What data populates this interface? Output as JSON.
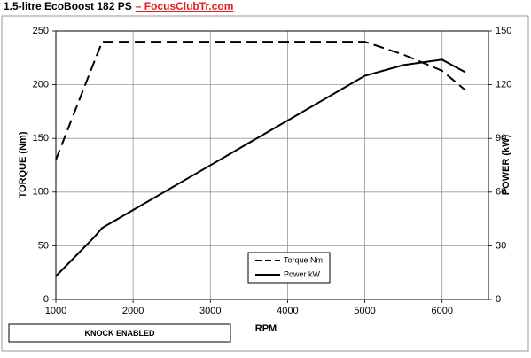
{
  "chart_data": {
    "type": "line",
    "title": "1.5-litre EcoBoost 182 PS",
    "subtitle": "– FocusClubTr.com",
    "x_label": "RPM",
    "y_label": "TORQUE (Nm)",
    "y2_label": "POWER (kW)",
    "annotation": "KNOCK ENABLED",
    "x": [
      1000,
      1500,
      1600,
      5000,
      5500,
      6000,
      6300
    ],
    "series": [
      {
        "name": "Torque Nm",
        "color": "#000000",
        "dash": true,
        "values": [
          130,
          222,
          240,
          240,
          228,
          213,
          195
        ]
      },
      {
        "name": "Power kW",
        "color": "#000000",
        "dash": false,
        "axis": "y2",
        "values": [
          13,
          35,
          40,
          125,
          131,
          134,
          127
        ]
      }
    ],
    "xlim": [
      1000,
      6600
    ],
    "xticks": [
      1000,
      2000,
      3000,
      4000,
      5000,
      6000
    ],
    "ylim": [
      0,
      250
    ],
    "yticks": [
      0,
      50,
      100,
      150,
      200,
      250
    ],
    "y2lim": [
      0,
      150
    ],
    "y2ticks": [
      0,
      30,
      60,
      90,
      120,
      150
    ],
    "grid": true
  }
}
